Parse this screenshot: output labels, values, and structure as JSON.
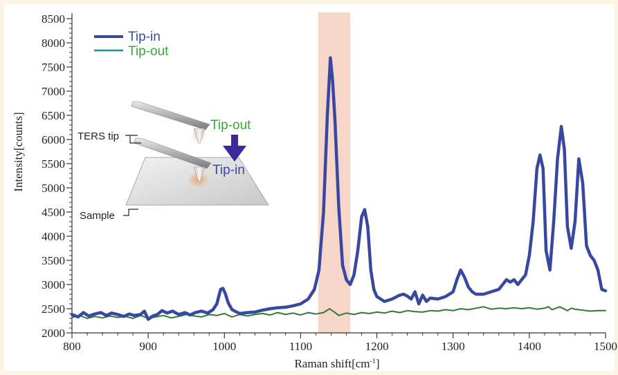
{
  "chart_data": {
    "type": "line",
    "xlabel": "Raman shift[cm",
    "xlabel_sup": "-1",
    "xlabel_close": "]",
    "ylabel": "Intensity[counts]",
    "xlim": [
      800,
      1500
    ],
    "ylim": [
      2000,
      8500
    ],
    "x_ticks": [
      800,
      900,
      1000,
      1100,
      1200,
      1300,
      1400,
      1500
    ],
    "y_ticks": [
      2000,
      2500,
      3000,
      3500,
      4000,
      4500,
      5000,
      5500,
      6000,
      6500,
      7000,
      7500,
      8000,
      8500
    ],
    "highlight_band": {
      "x_range": [
        1123,
        1165
      ],
      "color": "#f6d6c8"
    },
    "legend_position": "top-left",
    "series": [
      {
        "name": "Tip-in",
        "color": "#3848a0",
        "label_color": "#3848a0",
        "x": [
          800,
          808,
          815,
          822,
          830,
          838,
          845,
          852,
          860,
          868,
          875,
          882,
          890,
          895,
          900,
          906,
          912,
          918,
          925,
          932,
          940,
          948,
          955,
          962,
          970,
          978,
          985,
          990,
          995,
          998,
          1001,
          1005,
          1010,
          1015,
          1020,
          1030,
          1040,
          1050,
          1060,
          1070,
          1080,
          1090,
          1100,
          1110,
          1118,
          1124,
          1130,
          1135,
          1139,
          1142,
          1145,
          1150,
          1155,
          1160,
          1165,
          1170,
          1175,
          1180,
          1184,
          1188,
          1192,
          1196,
          1200,
          1210,
          1220,
          1230,
          1235,
          1240,
          1245,
          1250,
          1255,
          1260,
          1265,
          1270,
          1280,
          1290,
          1300,
          1305,
          1310,
          1315,
          1320,
          1325,
          1330,
          1340,
          1350,
          1360,
          1365,
          1370,
          1375,
          1380,
          1385,
          1390,
          1395,
          1400,
          1405,
          1410,
          1414,
          1418,
          1422,
          1427,
          1432,
          1437,
          1442,
          1446,
          1450,
          1455,
          1460,
          1465,
          1470,
          1475,
          1480,
          1485,
          1490,
          1495,
          1500
        ],
        "values": [
          2380,
          2330,
          2420,
          2350,
          2390,
          2420,
          2360,
          2410,
          2380,
          2340,
          2390,
          2360,
          2380,
          2450,
          2280,
          2350,
          2380,
          2460,
          2410,
          2450,
          2380,
          2420,
          2370,
          2420,
          2450,
          2410,
          2480,
          2600,
          2900,
          2920,
          2820,
          2620,
          2480,
          2440,
          2400,
          2420,
          2430,
          2470,
          2500,
          2520,
          2530,
          2560,
          2600,
          2700,
          2900,
          3300,
          4500,
          6500,
          7690,
          7200,
          6400,
          4600,
          3400,
          3100,
          3000,
          3200,
          3700,
          4400,
          4550,
          4200,
          3300,
          2900,
          2750,
          2650,
          2700,
          2780,
          2800,
          2760,
          2700,
          2850,
          2600,
          2780,
          2650,
          2720,
          2700,
          2750,
          2850,
          3100,
          3300,
          3150,
          2950,
          2850,
          2800,
          2800,
          2850,
          2900,
          3000,
          3100,
          3050,
          3100,
          3000,
          3100,
          3200,
          3600,
          4300,
          5400,
          5680,
          5400,
          3700,
          3300,
          4300,
          5600,
          6270,
          5800,
          4200,
          3750,
          4300,
          5600,
          5100,
          3800,
          3600,
          3500,
          3300,
          2900,
          2870
        ]
      },
      {
        "name": "Tip-out",
        "color": "#2e7a2e",
        "legend_line_color": "#1a9090",
        "label_color": "#3aa63a",
        "x": [
          800,
          810,
          820,
          830,
          840,
          850,
          860,
          870,
          880,
          890,
          900,
          910,
          920,
          930,
          940,
          950,
          960,
          970,
          980,
          990,
          1000,
          1010,
          1020,
          1030,
          1040,
          1050,
          1060,
          1070,
          1080,
          1090,
          1100,
          1110,
          1120,
          1130,
          1138,
          1145,
          1150,
          1160,
          1170,
          1180,
          1190,
          1200,
          1210,
          1220,
          1230,
          1240,
          1250,
          1260,
          1270,
          1280,
          1290,
          1300,
          1310,
          1320,
          1330,
          1340,
          1350,
          1360,
          1370,
          1380,
          1390,
          1400,
          1410,
          1420,
          1425,
          1430,
          1440,
          1450,
          1455,
          1460,
          1470,
          1480,
          1490,
          1500
        ],
        "values": [
          2320,
          2360,
          2300,
          2340,
          2310,
          2350,
          2320,
          2340,
          2300,
          2360,
          2300,
          2330,
          2360,
          2310,
          2340,
          2380,
          2350,
          2330,
          2380,
          2360,
          2400,
          2330,
          2380,
          2350,
          2380,
          2400,
          2370,
          2420,
          2380,
          2410,
          2370,
          2420,
          2390,
          2420,
          2500,
          2420,
          2360,
          2410,
          2380,
          2420,
          2400,
          2430,
          2410,
          2450,
          2420,
          2460,
          2440,
          2430,
          2460,
          2450,
          2480,
          2460,
          2500,
          2480,
          2510,
          2540,
          2490,
          2510,
          2500,
          2520,
          2500,
          2520,
          2490,
          2510,
          2540,
          2480,
          2540,
          2460,
          2510,
          2490,
          2470,
          2450,
          2460,
          2460
        ]
      }
    ]
  },
  "inset": {
    "label_tip_out": "Tip-out",
    "label_tip_in": "Tip-in",
    "label_ters_tip": "TERS tip",
    "label_sample": "Sample",
    "arrow_color": "#3d2a9a"
  }
}
